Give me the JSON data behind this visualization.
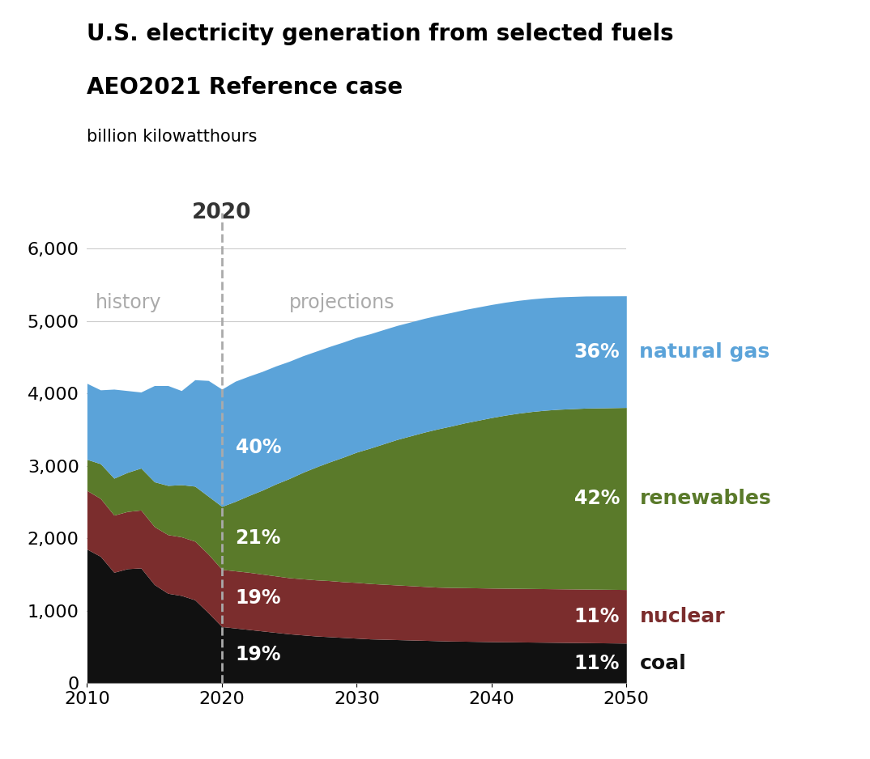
{
  "title_line1": "U.S. electricity generation from selected fuels",
  "title_line2": "AEO2021 Reference case",
  "ylabel": "billion kilowatthours",
  "colors": {
    "coal": "#111111",
    "nuclear": "#7B2D2D",
    "renewables": "#5A7A2A",
    "natural_gas": "#5BA3D9"
  },
  "legend_colors": {
    "natural gas": "#5BA3D9",
    "renewables": "#5A7A2A",
    "nuclear": "#7B2D2D",
    "coal": "#111111"
  },
  "years": [
    2010,
    2011,
    2012,
    2013,
    2014,
    2015,
    2016,
    2017,
    2018,
    2019,
    2020,
    2021,
    2022,
    2023,
    2024,
    2025,
    2026,
    2027,
    2028,
    2029,
    2030,
    2031,
    2032,
    2033,
    2034,
    2035,
    2036,
    2037,
    2038,
    2039,
    2040,
    2041,
    2042,
    2043,
    2044,
    2045,
    2046,
    2047,
    2048,
    2049,
    2050
  ],
  "coal": [
    1850,
    1750,
    1530,
    1580,
    1590,
    1360,
    1240,
    1210,
    1150,
    970,
    780,
    760,
    740,
    720,
    700,
    680,
    665,
    650,
    640,
    630,
    620,
    610,
    605,
    600,
    595,
    590,
    585,
    580,
    578,
    575,
    572,
    570,
    568,
    566,
    564,
    562,
    560,
    558,
    556,
    554,
    552
  ],
  "nuclear": [
    810,
    800,
    790,
    790,
    800,
    800,
    810,
    810,
    810,
    810,
    790,
    790,
    790,
    785,
    780,
    775,
    775,
    775,
    775,
    770,
    770,
    765,
    760,
    755,
    750,
    745,
    740,
    740,
    740,
    740,
    740,
    740,
    740,
    740,
    740,
    740,
    740,
    740,
    740,
    740,
    740
  ],
  "renewables": [
    430,
    480,
    510,
    540,
    580,
    620,
    680,
    720,
    760,
    800,
    870,
    960,
    1060,
    1160,
    1270,
    1370,
    1470,
    1560,
    1640,
    1720,
    1800,
    1870,
    1940,
    2010,
    2070,
    2130,
    2185,
    2230,
    2275,
    2315,
    2355,
    2390,
    2420,
    2445,
    2465,
    2480,
    2490,
    2500,
    2505,
    2510,
    2515
  ],
  "natural_gas": [
    1050,
    1020,
    1230,
    1130,
    1050,
    1330,
    1380,
    1300,
    1470,
    1600,
    1620,
    1660,
    1650,
    1640,
    1630,
    1620,
    1610,
    1600,
    1595,
    1590,
    1585,
    1580,
    1578,
    1575,
    1573,
    1572,
    1570,
    1568,
    1566,
    1564,
    1562,
    1560,
    1558,
    1556,
    1554,
    1552,
    1550,
    1548,
    1546,
    1544,
    1542
  ],
  "ylim": [
    0,
    6500
  ],
  "yticks": [
    0,
    1000,
    2000,
    3000,
    4000,
    5000,
    6000
  ],
  "xlim": [
    2010,
    2050
  ],
  "divider_year": 2020,
  "background_color": "#FFFFFF"
}
